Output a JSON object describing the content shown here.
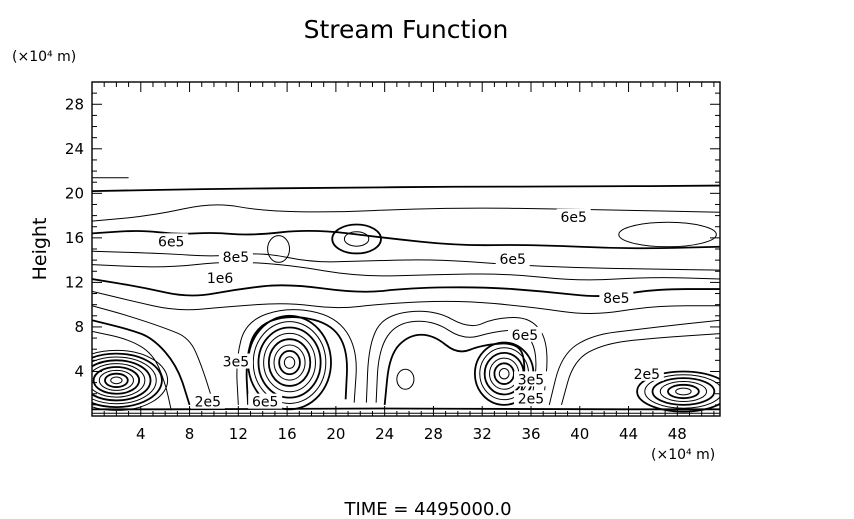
{
  "chart_data": {
    "type": "contour",
    "title": "Stream Function",
    "ylabel": "Height",
    "y_unit_label": "(×10⁴ m)",
    "x_unit_label": "(×10⁴ m)",
    "footer": "TIME  =  4495000.0",
    "xlim": [
      0,
      51.5
    ],
    "ylim": [
      0,
      30
    ],
    "x_ticks": [
      4,
      8,
      12,
      16,
      20,
      24,
      28,
      32,
      36,
      40,
      44,
      48
    ],
    "y_ticks": [
      4,
      8,
      12,
      16,
      20,
      24,
      28
    ],
    "contour_labels": [
      {
        "text": "6e5",
        "x": 6.5,
        "y": 15.6
      },
      {
        "text": "8e5",
        "x": 11.8,
        "y": 14.2
      },
      {
        "text": "1e6",
        "x": 10.5,
        "y": 12.3
      },
      {
        "text": "6e5",
        "x": 39.5,
        "y": 17.8
      },
      {
        "text": "6e5",
        "x": 34.5,
        "y": 14.0
      },
      {
        "text": "8e5",
        "x": 43.0,
        "y": 10.5
      },
      {
        "text": "6e5",
        "x": 35.5,
        "y": 7.2
      },
      {
        "text": "2e5",
        "x": 45.5,
        "y": 3.7
      },
      {
        "text": "3e5",
        "x": 11.8,
        "y": 4.8
      },
      {
        "text": "2e5",
        "x": 9.5,
        "y": 1.2
      },
      {
        "text": "6e5",
        "x": 14.2,
        "y": 1.2
      },
      {
        "text": "3e5",
        "x": 36.0,
        "y": 3.2
      },
      {
        "text": "2e5",
        "x": 36.0,
        "y": 1.5
      }
    ],
    "closed_centers": [
      {
        "x": 2.0,
        "y": 3.2,
        "rx": 4.2,
        "ry": 2.7,
        "rings": 9
      },
      {
        "x": 16.2,
        "y": 4.8,
        "rx": 3.4,
        "ry": 4.2,
        "rings": 8
      },
      {
        "x": 33.8,
        "y": 3.8,
        "rx": 2.4,
        "ry": 2.8,
        "rings": 6
      },
      {
        "x": 48.5,
        "y": 2.2,
        "rx": 3.8,
        "ry": 1.8,
        "rings": 6
      },
      {
        "x": 25.7,
        "y": 3.3,
        "rx": 0.7,
        "ry": 0.9,
        "rings": 1
      },
      {
        "x": 21.7,
        "y": 15.9,
        "rx": 2.0,
        "ry": 1.3,
        "rings": 2
      },
      {
        "x": 15.3,
        "y": 15.0,
        "rx": 0.9,
        "ry": 1.2,
        "rings": 1
      },
      {
        "x": 47.2,
        "y": 16.3,
        "rx": 4.0,
        "ry": 1.1,
        "rings": 1
      }
    ],
    "open_contours": [
      [
        [
          0,
          20.2
        ],
        [
          10,
          20.4
        ],
        [
          20,
          20.5
        ],
        [
          30,
          20.6
        ],
        [
          40,
          20.6
        ],
        [
          51.5,
          20.7
        ]
      ],
      [
        [
          0,
          21.4
        ],
        [
          3,
          21.4
        ]
      ],
      [
        [
          0,
          17.5
        ],
        [
          5,
          18.0
        ],
        [
          10,
          19.2
        ],
        [
          14,
          18.4
        ],
        [
          20,
          18.3
        ],
        [
          26,
          18.6
        ],
        [
          32,
          18.7
        ],
        [
          38,
          18.6
        ],
        [
          43,
          18.5
        ],
        [
          51.5,
          18.3
        ]
      ],
      [
        [
          0,
          16.4
        ],
        [
          4,
          16.7
        ],
        [
          7,
          16.3
        ],
        [
          10,
          16.5
        ],
        [
          13,
          16.2
        ],
        [
          18,
          16.8
        ],
        [
          24,
          16.0
        ],
        [
          30,
          15.3
        ],
        [
          36,
          15.4
        ],
        [
          44,
          15.0
        ],
        [
          51.5,
          15.2
        ]
      ],
      [
        [
          0,
          14.8
        ],
        [
          6,
          14.6
        ],
        [
          10,
          14.3
        ],
        [
          14,
          14.7
        ],
        [
          18,
          13.8
        ],
        [
          22,
          13.9
        ],
        [
          28,
          14.1
        ],
        [
          34,
          13.6
        ],
        [
          40,
          13.3
        ],
        [
          46,
          13.2
        ],
        [
          51.5,
          13.1
        ]
      ],
      [
        [
          0,
          13.6
        ],
        [
          6,
          13.3
        ],
        [
          11,
          13.9
        ],
        [
          16,
          13.6
        ],
        [
          22,
          12.5
        ],
        [
          28,
          12.7
        ],
        [
          34,
          12.8
        ],
        [
          40,
          12.1
        ],
        [
          46,
          12.5
        ],
        [
          51.5,
          12.3
        ]
      ],
      [
        [
          0,
          12.3
        ],
        [
          4,
          11.6
        ],
        [
          8,
          10.6
        ],
        [
          12,
          11.4
        ],
        [
          16,
          11.9
        ],
        [
          22,
          11.0
        ],
        [
          26,
          11.5
        ],
        [
          32,
          11.6
        ],
        [
          37,
          11.2
        ],
        [
          42,
          10.6
        ],
        [
          46,
          11.4
        ],
        [
          51.5,
          11.4
        ]
      ],
      [
        [
          0,
          11.2
        ],
        [
          3,
          10.4
        ],
        [
          7,
          9.4
        ],
        [
          11,
          9.8
        ],
        [
          16,
          10.2
        ],
        [
          20,
          9.6
        ],
        [
          24,
          10.1
        ],
        [
          30,
          10.4
        ],
        [
          36,
          9.8
        ],
        [
          41,
          9.0
        ],
        [
          46,
          9.9
        ],
        [
          51.5,
          9.9
        ]
      ],
      [
        [
          0,
          9.9
        ],
        [
          3,
          9.0
        ],
        [
          6,
          7.9
        ],
        [
          8,
          7.0
        ],
        [
          9,
          4.5
        ],
        [
          10,
          1.0
        ]
      ],
      [
        [
          0,
          8.6
        ],
        [
          3,
          7.8
        ],
        [
          5,
          7.0
        ],
        [
          7,
          4.5
        ],
        [
          8,
          1.0
        ]
      ],
      [
        [
          0,
          7.6
        ],
        [
          3,
          6.9
        ],
        [
          5,
          5.6
        ],
        [
          6,
          3.0
        ],
        [
          6.5,
          0.5
        ]
      ],
      [
        [
          12,
          1.0
        ],
        [
          11.8,
          5.0
        ],
        [
          12.6,
          8.5
        ],
        [
          16,
          9.8
        ],
        [
          20,
          9.0
        ],
        [
          21.8,
          6.0
        ],
        [
          21.5,
          1.2
        ]
      ],
      [
        [
          12.8,
          1.0
        ],
        [
          12.6,
          5.0
        ],
        [
          13.4,
          8.0
        ],
        [
          16,
          9.1
        ],
        [
          19.5,
          8.4
        ],
        [
          21.0,
          6.0
        ],
        [
          20.8,
          1.5
        ]
      ],
      [
        [
          22.5,
          1.2
        ],
        [
          22.7,
          6.5
        ],
        [
          24,
          9.1
        ],
        [
          28,
          9.6
        ],
        [
          31,
          7.8
        ],
        [
          33,
          8.8
        ],
        [
          36,
          8.9
        ],
        [
          37.5,
          6.5
        ],
        [
          37.0,
          1.0
        ]
      ],
      [
        [
          23.3,
          1.2
        ],
        [
          23.5,
          6.0
        ],
        [
          25,
          8.4
        ],
        [
          28,
          8.6
        ],
        [
          30.5,
          6.8
        ],
        [
          33,
          7.6
        ],
        [
          35.5,
          7.8
        ],
        [
          36.6,
          5.5
        ],
        [
          36.0,
          1.0
        ]
      ],
      [
        [
          24.0,
          1.0
        ],
        [
          24.4,
          5.5
        ],
        [
          26,
          7.3
        ],
        [
          28,
          7.3
        ],
        [
          30,
          5.5
        ],
        [
          32,
          6.4
        ],
        [
          35,
          6.6
        ],
        [
          35.6,
          4.5
        ],
        [
          35.0,
          1.0
        ]
      ],
      [
        [
          37.5,
          1.0
        ],
        [
          38.5,
          5.5
        ],
        [
          41,
          7.3
        ],
        [
          45,
          7.8
        ],
        [
          48,
          8.2
        ],
        [
          51.5,
          8.6
        ]
      ],
      [
        [
          38.5,
          1.0
        ],
        [
          39.5,
          5.0
        ],
        [
          42,
          6.5
        ],
        [
          46,
          7.0
        ],
        [
          51.5,
          7.4
        ]
      ],
      [
        [
          0,
          0.6
        ],
        [
          12,
          0.6
        ],
        [
          24,
          0.7
        ],
        [
          36,
          0.6
        ],
        [
          51.5,
          0.6
        ]
      ],
      [
        [
          0,
          0.25
        ],
        [
          51.5,
          0.25
        ]
      ]
    ]
  }
}
